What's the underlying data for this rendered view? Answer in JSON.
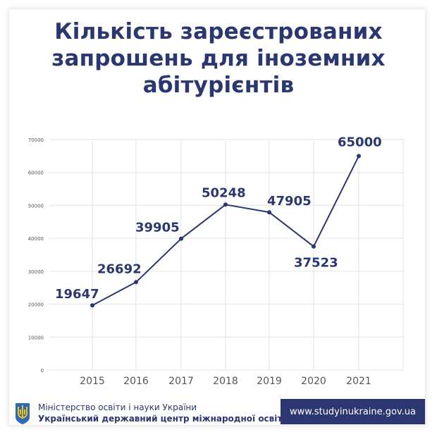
{
  "title_lines": [
    "Кількість зареєстрованих",
    "запрошень для іноземних",
    "абітурієнтів"
  ],
  "colors": {
    "accent": "#2b3770",
    "grid": "#e3e3e3",
    "tick_text": "#555555",
    "background": "#ffffff"
  },
  "chart_data": {
    "type": "line",
    "x": [
      "2015",
      "2016",
      "2017",
      "2018",
      "2019",
      "2020",
      "2021"
    ],
    "y": [
      19647,
      26692,
      39905,
      50248,
      47905,
      37523,
      65000
    ],
    "data_labels": [
      "19647",
      "26692",
      "39905",
      "50248",
      "47905",
      "37523",
      "65000"
    ],
    "y_ticks": [
      "0",
      "10000",
      "20000",
      "30000",
      "40000",
      "50000",
      "60000",
      "70000"
    ],
    "ylim": [
      0,
      70000
    ],
    "grid": true,
    "legend": "none",
    "xlabel": "",
    "ylabel": ""
  },
  "footer": {
    "ministry": "Міністерство освіти і науки України",
    "center": "Український державний центр міжнародної освіти",
    "url": "www.studyinukraine.gov.ua",
    "emblem_icon": "trident-emblem-icon"
  }
}
